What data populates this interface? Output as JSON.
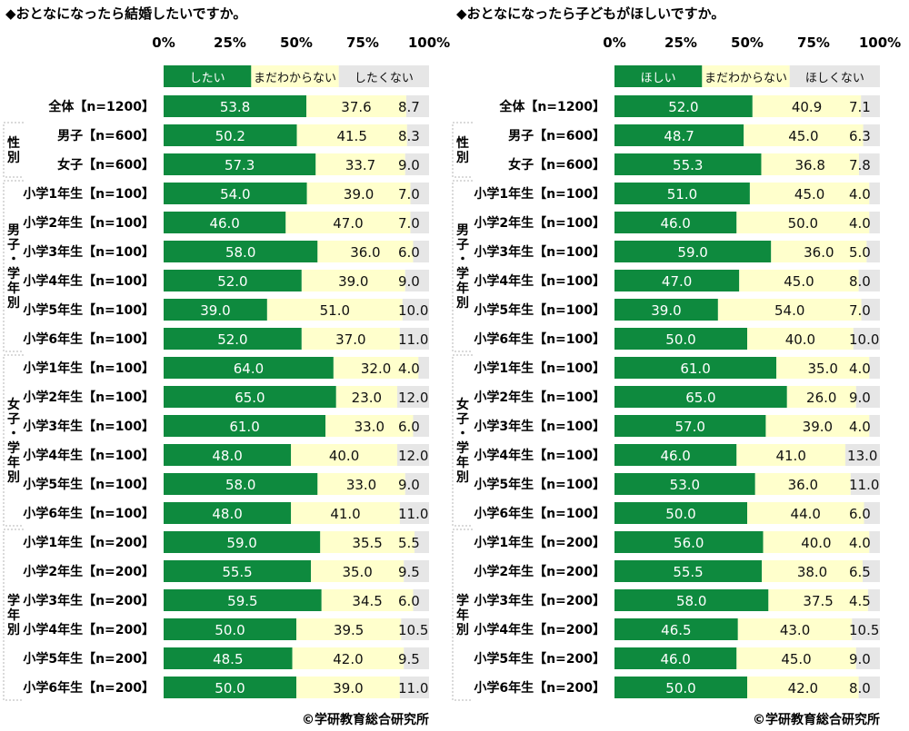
{
  "chart_data": [
    {
      "type": "bar",
      "stacked": true,
      "horizontal": true,
      "title": "◆おとなになったら結婚したいですか。",
      "xlim": [
        0,
        100
      ],
      "ticks": [
        "0%",
        "25%",
        "50%",
        "75%",
        "100%"
      ],
      "legend": [
        "したい",
        "まだわからない",
        "したくない"
      ],
      "categories": [
        "全体【n=1200】",
        "男子【n=600】",
        "女子【n=600】",
        "小学1年生【n=100】",
        "小学2年生【n=100】",
        "小学3年生【n=100】",
        "小学4年生【n=100】",
        "小学5年生【n=100】",
        "小学6年生【n=100】",
        "小学1年生【n=100】",
        "小学2年生【n=100】",
        "小学3年生【n=100】",
        "小学4年生【n=100】",
        "小学5年生【n=100】",
        "小学6年生【n=100】",
        "小学1年生【n=200】",
        "小学2年生【n=200】",
        "小学3年生【n=200】",
        "小学4年生【n=200】",
        "小学5年生【n=200】",
        "小学6年生【n=200】"
      ],
      "series": [
        {
          "name": "したい",
          "values": [
            53.8,
            50.2,
            57.3,
            54.0,
            46.0,
            58.0,
            52.0,
            39.0,
            52.0,
            64.0,
            65.0,
            61.0,
            48.0,
            58.0,
            48.0,
            59.0,
            55.5,
            59.5,
            50.0,
            48.5,
            50.0
          ],
          "labels": [
            "53.8",
            "50.2",
            "57.3",
            "54.0",
            "46.0",
            "58.0",
            "52.0",
            "39.0",
            "52.0",
            "64.0",
            "65.0",
            "61.0",
            "48.0",
            "58.0",
            "48.0",
            "59.0",
            "55.5",
            "59.5",
            "50.0",
            "48.5",
            "50.0"
          ]
        },
        {
          "name": "まだわからない",
          "values": [
            37.6,
            41.5,
            33.7,
            39.0,
            47.0,
            36.0,
            39.0,
            51.0,
            37.0,
            32.0,
            23.0,
            33.0,
            40.0,
            33.0,
            41.0,
            35.5,
            35.0,
            34.5,
            39.5,
            42.0,
            39.0
          ],
          "labels": [
            "37.6",
            "41.5",
            "33.7",
            "39.0",
            "47.0",
            "36.0",
            "39.0",
            "51.0",
            "37.0",
            "32.0",
            "23.0",
            "33.0",
            "40.0",
            "33.0",
            "41.0",
            "35.5",
            "35.0",
            "34.5",
            "39.5",
            "42.0",
            "39.0"
          ]
        },
        {
          "name": "したくない",
          "values": [
            8.7,
            8.3,
            9.0,
            7.0,
            7.0,
            6.0,
            9.0,
            10.0,
            11.0,
            4.0,
            12.0,
            6.0,
            12.0,
            9.0,
            11.0,
            5.5,
            9.5,
            6.0,
            10.5,
            9.5,
            11.0
          ],
          "labels": [
            "8.7",
            "8.3",
            "9.0",
            "7.0",
            "7.0",
            "6.0",
            "9.0",
            "10.0",
            "11.0",
            "4.0",
            "12.0",
            "6.0",
            "12.0",
            "9.0",
            "11.0",
            "5.5",
            "9.5",
            "6.0",
            "10.5",
            "9.5",
            "11.0"
          ]
        }
      ],
      "groups": [
        {
          "label": "性別",
          "rows": [
            1,
            2
          ]
        },
        {
          "label": "男子・学年別",
          "rows": [
            3,
            8
          ]
        },
        {
          "label": "女子・学年別",
          "rows": [
            9,
            14
          ]
        },
        {
          "label": "学年別",
          "rows": [
            15,
            20
          ]
        }
      ],
      "credit": "©学研教育総合研究所"
    },
    {
      "type": "bar",
      "stacked": true,
      "horizontal": true,
      "title": "◆おとなになったら子どもがほしいですか。",
      "xlim": [
        0,
        100
      ],
      "ticks": [
        "0%",
        "25%",
        "50%",
        "75%",
        "100%"
      ],
      "legend": [
        "ほしい",
        "まだわからない",
        "ほしくない"
      ],
      "categories": [
        "全体【n=1200】",
        "男子【n=600】",
        "女子【n=600】",
        "小学1年生【n=100】",
        "小学2年生【n=100】",
        "小学3年生【n=100】",
        "小学4年生【n=100】",
        "小学5年生【n=100】",
        "小学6年生【n=100】",
        "小学1年生【n=100】",
        "小学2年生【n=100】",
        "小学3年生【n=100】",
        "小学4年生【n=100】",
        "小学5年生【n=100】",
        "小学6年生【n=100】",
        "小学1年生【n=200】",
        "小学2年生【n=200】",
        "小学3年生【n=200】",
        "小学4年生【n=200】",
        "小学5年生【n=200】",
        "小学6年生【n=200】"
      ],
      "series": [
        {
          "name": "ほしい",
          "values": [
            52.0,
            48.7,
            55.3,
            51.0,
            46.0,
            59.0,
            47.0,
            39.0,
            50.0,
            61.0,
            65.0,
            57.0,
            46.0,
            53.0,
            50.0,
            56.0,
            55.5,
            58.0,
            46.5,
            46.0,
            50.0
          ],
          "labels": [
            "52.0",
            "48.7",
            "55.3",
            "51.0",
            "46.0",
            "59.0",
            "47.0",
            "39.0",
            "50.0",
            "61.0",
            "65.0",
            "57.0",
            "46.0",
            "53.0",
            "50.0",
            "56.0",
            "55.5",
            "58.0",
            "46.5",
            "46.0",
            "50.0"
          ]
        },
        {
          "name": "まだわからない",
          "values": [
            40.9,
            45.0,
            36.8,
            45.0,
            50.0,
            36.0,
            45.0,
            54.0,
            40.0,
            35.0,
            26.0,
            39.0,
            41.0,
            36.0,
            44.0,
            40.0,
            38.0,
            37.5,
            43.0,
            45.0,
            42.0
          ],
          "labels": [
            "40.9",
            "45.0",
            "36.8",
            "45.0",
            "50.0",
            "36.0",
            "45.0",
            "54.0",
            "40.0",
            "35.0",
            "26.0",
            "39.0",
            "41.0",
            "36.0",
            "44.0",
            "40.0",
            "38.0",
            "37.5",
            "43.0",
            "45.0",
            "42.0"
          ]
        },
        {
          "name": "ほしくない",
          "values": [
            7.1,
            6.3,
            7.8,
            4.0,
            4.0,
            5.0,
            8.0,
            7.0,
            10.0,
            4.0,
            9.0,
            4.0,
            13.0,
            11.0,
            6.0,
            4.0,
            6.5,
            4.5,
            10.5,
            9.0,
            8.0
          ],
          "labels": [
            "7.1",
            "6.3",
            "7.8",
            "4.0",
            "4.0",
            "5.0",
            "8.0",
            "7.0",
            "10.0",
            "4.0",
            "9.0",
            "4.0",
            "13.0",
            "11.0",
            "6.0",
            "4.0",
            "6.5",
            "4.5",
            "10.5",
            "9.0",
            "8.0"
          ]
        }
      ],
      "groups": [
        {
          "label": "性別",
          "rows": [
            1,
            2
          ]
        },
        {
          "label": "男子・学年別",
          "rows": [
            3,
            8
          ]
        },
        {
          "label": "女子・学年別",
          "rows": [
            9,
            14
          ]
        },
        {
          "label": "学年別",
          "rows": [
            15,
            20
          ]
        }
      ],
      "credit": "©学研教育総合研究所"
    }
  ],
  "colors": {
    "series": [
      "#0e8a3e",
      "#ffffcc",
      "#e6e6e6"
    ],
    "group_border": "#b5b5b5"
  }
}
